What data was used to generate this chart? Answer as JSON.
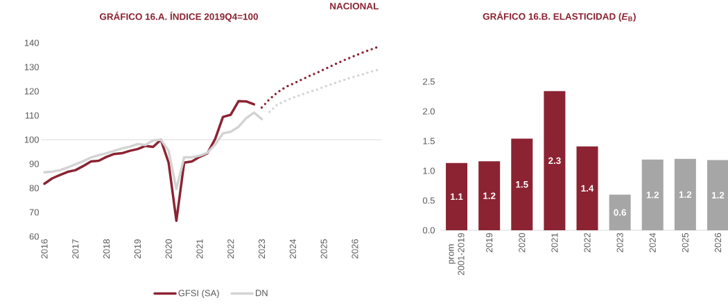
{
  "chart_data": [
    {
      "type": "line",
      "title": "GRÁFICO 16.A.  ÍNDICE 2019Q4=100",
      "annotations": [
        "NACIONAL"
      ],
      "series": [
        {
          "name": "GFSI (SA)",
          "color": "#8b2332",
          "line_style": "solid",
          "x": [
            2016,
            2016.25,
            2016.5,
            2016.75,
            2017,
            2017.25,
            2017.5,
            2017.75,
            2018,
            2018.25,
            2018.5,
            2018.75,
            2019,
            2019.25,
            2019.5,
            2019.75,
            2020,
            2020.25,
            2020.5,
            2020.75,
            2021,
            2021.25,
            2021.5,
            2021.75,
            2022,
            2022.25,
            2022.5,
            2022.75
          ],
          "values": [
            81.8,
            84.0,
            85.4,
            86.7,
            87.4,
            89.1,
            91.0,
            91.3,
            92.9,
            94.1,
            94.4,
            95.4,
            96.1,
            97.4,
            97.0,
            100,
            90.5,
            66.5,
            90.5,
            91.0,
            92.9,
            94.4,
            100.3,
            109.4,
            110.3,
            115.9,
            115.8,
            114.6
          ]
        },
        {
          "name": "DN",
          "color": "#d3d3d3",
          "line_style": "solid",
          "x": [
            2016,
            2016.25,
            2016.5,
            2016.75,
            2017,
            2017.25,
            2017.5,
            2017.75,
            2018,
            2018.25,
            2018.5,
            2018.75,
            2019,
            2019.25,
            2019.5,
            2019.75,
            2020,
            2020.25,
            2020.5,
            2020.75,
            2021,
            2021.25,
            2021.5,
            2021.75,
            2022,
            2022.25,
            2022.5,
            2022.75,
            2023
          ],
          "values": [
            86.5,
            86.8,
            87.4,
            88.5,
            89.8,
            91.1,
            92.6,
            93.6,
            94.4,
            95.4,
            96.4,
            97.1,
            98.2,
            97.8,
            99.7,
            100,
            95.4,
            79.6,
            92.7,
            92.7,
            93.4,
            94.6,
            98.0,
            102.6,
            103.3,
            105.3,
            108.9,
            111.2,
            108.5
          ]
        },
        {
          "color": "#8b2332",
          "line_style": "dotted",
          "x": [
            2023,
            2023.25,
            2023.5,
            2023.75,
            2024,
            2024.25,
            2024.5,
            2024.75,
            2025,
            2025.25,
            2025.5,
            2025.75,
            2026,
            2026.25,
            2026.5,
            2026.75
          ],
          "values": [
            113.3,
            116.7,
            119.5,
            121.6,
            123.1,
            124.6,
            126.1,
            127.5,
            129.0,
            130.5,
            132.0,
            133.4,
            134.7,
            136.0,
            137.2,
            138.4
          ]
        },
        {
          "color": "#d3d3d3",
          "line_style": "dotted",
          "x": [
            2023.25,
            2023.5,
            2023.75,
            2024,
            2024.25,
            2024.5,
            2024.75,
            2025,
            2025.25,
            2025.5,
            2025.75,
            2026,
            2026.25,
            2026.5,
            2026.75
          ],
          "values": [
            111.5,
            114.5,
            116.0,
            117.3,
            118.5,
            119.6,
            120.6,
            121.8,
            122.9,
            124.0,
            125.1,
            126.1,
            127.0,
            128.0,
            128.9
          ]
        }
      ],
      "xlim": [
        2015.91,
        2026.85
      ],
      "xticks": [
        2016,
        2017,
        2018,
        2019,
        2020,
        2021,
        2022,
        2023,
        2024,
        2025,
        2026
      ],
      "ylim": [
        60,
        140
      ],
      "yticks": [
        60,
        70,
        80,
        90,
        100,
        110,
        120,
        130,
        140
      ],
      "ref_lines": [
        {
          "axis": "y",
          "value": 100,
          "color": "#d9d9d9"
        }
      ],
      "legend": "bottom"
    },
    {
      "type": "bar",
      "title": "GRÁFICO 16.B.  ELASTICIDAD (*E*$_{B}$)",
      "categories": [
        "prom 2001-2019",
        "2019",
        "2020",
        "2021",
        "2022",
        "2023",
        "2024",
        "2025",
        "2026"
      ],
      "values": [
        1.13,
        1.16,
        1.54,
        2.34,
        1.41,
        0.6,
        1.19,
        1.2,
        1.18
      ],
      "colors": [
        "#8b2332",
        "#8b2332",
        "#8b2332",
        "#8b2332",
        "#8b2332",
        "#a6a6a6",
        "#a6a6a6",
        "#a6a6a6",
        "#a6a6a6"
      ],
      "value_labels": [
        "1.1",
        "1.2",
        "1.5",
        "2.3",
        "1.4",
        "0.6",
        "1.2",
        "1.2",
        "1.2"
      ],
      "ylim": [
        0,
        2.5
      ],
      "yticks": [
        {
          "value": 0,
          "label": "0.0"
        },
        {
          "value": 0.5,
          "label": "0.5"
        },
        {
          "value": 1,
          "label": "1.0"
        },
        {
          "value": 1.5,
          "label": "1.5"
        },
        {
          "value": 2,
          "label": "2.0"
        },
        {
          "value": 2.5,
          "label": "2.5"
        }
      ]
    }
  ]
}
